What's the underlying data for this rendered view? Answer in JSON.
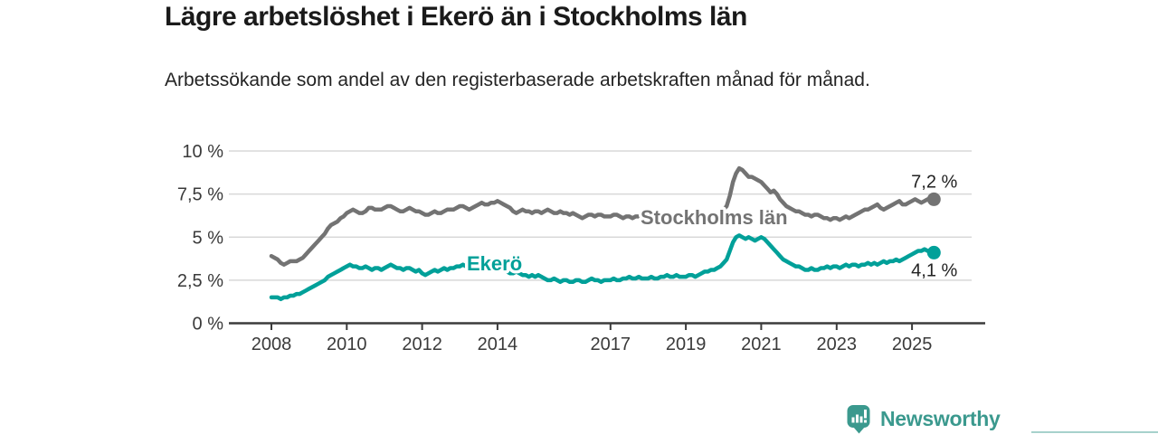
{
  "header": {
    "title": "Lägre arbetslöshet i Ekerö än i Stockholms län",
    "subtitle": "Arbetssökande som andel av den registerbaserade arbetskraften månad för månad."
  },
  "footer": {
    "brand": "Newsworthy",
    "logo_icon": "bar-chart-speech-bubble-icon",
    "brand_color": "#3b998e"
  },
  "chart_data": {
    "type": "line",
    "title": "Lägre arbetslöshet i Ekerö än i Stockholms län",
    "subtitle": "Arbetssökande som andel av den registerbaserade arbetskraften månad för månad.",
    "frequency": "monthly",
    "x_start": "2008-01",
    "x_end": "2025-08",
    "x_tick_labels": [
      "2008",
      "2010",
      "2012",
      "2014",
      "2017",
      "2019",
      "2021",
      "2023",
      "2025"
    ],
    "y_tick_labels": [
      "10 %",
      "7,5 %",
      "5 %",
      "2,5 %",
      "0 %"
    ],
    "ylim": [
      0,
      10
    ],
    "grid": "horizontal",
    "legend": "inline-labels",
    "axis_color": "#3b3b3b",
    "grid_color": "#d8d8d8",
    "series": [
      {
        "name": "Stockholms län",
        "color": "#737373",
        "end_label": "7,2 %",
        "end_value": 7.2,
        "values": [
          3.9,
          3.8,
          3.7,
          3.5,
          3.4,
          3.5,
          3.6,
          3.6,
          3.6,
          3.7,
          3.8,
          4.0,
          4.2,
          4.4,
          4.6,
          4.8,
          5.0,
          5.2,
          5.5,
          5.7,
          5.8,
          5.9,
          6.1,
          6.2,
          6.4,
          6.5,
          6.6,
          6.5,
          6.4,
          6.4,
          6.5,
          6.7,
          6.7,
          6.6,
          6.6,
          6.6,
          6.7,
          6.8,
          6.8,
          6.7,
          6.6,
          6.5,
          6.5,
          6.6,
          6.7,
          6.6,
          6.5,
          6.5,
          6.4,
          6.3,
          6.3,
          6.4,
          6.5,
          6.4,
          6.4,
          6.5,
          6.6,
          6.6,
          6.6,
          6.7,
          6.8,
          6.8,
          6.7,
          6.6,
          6.7,
          6.8,
          6.9,
          7.0,
          6.9,
          6.9,
          7.0,
          7.0,
          7.1,
          7.0,
          6.9,
          6.8,
          6.7,
          6.5,
          6.4,
          6.5,
          6.6,
          6.5,
          6.5,
          6.4,
          6.5,
          6.5,
          6.4,
          6.5,
          6.6,
          6.5,
          6.4,
          6.4,
          6.5,
          6.4,
          6.4,
          6.3,
          6.4,
          6.3,
          6.2,
          6.1,
          6.2,
          6.3,
          6.3,
          6.2,
          6.3,
          6.3,
          6.2,
          6.2,
          6.2,
          6.3,
          6.3,
          6.2,
          6.1,
          6.2,
          6.2,
          6.1,
          6.2,
          6.2,
          6.1,
          6.1,
          6.1,
          6.2,
          6.1,
          6.0,
          6.0,
          6.1,
          6.1,
          6.0,
          6.0,
          6.1,
          6.0,
          6.0,
          6.0,
          6.1,
          6.1,
          6.0,
          6.1,
          6.2,
          6.3,
          6.2,
          6.2,
          6.3,
          6.3,
          6.4,
          6.6,
          6.8,
          7.4,
          8.2,
          8.7,
          9.0,
          8.9,
          8.7,
          8.5,
          8.5,
          8.4,
          8.3,
          8.2,
          8.0,
          7.8,
          7.6,
          7.7,
          7.5,
          7.2,
          7.0,
          6.8,
          6.7,
          6.6,
          6.5,
          6.5,
          6.4,
          6.3,
          6.3,
          6.2,
          6.3,
          6.3,
          6.2,
          6.1,
          6.1,
          6.0,
          6.1,
          6.1,
          6.0,
          6.1,
          6.2,
          6.1,
          6.2,
          6.3,
          6.4,
          6.5,
          6.6,
          6.6,
          6.7,
          6.8,
          6.9,
          6.7,
          6.6,
          6.7,
          6.8,
          6.9,
          7.0,
          7.1,
          6.9,
          6.9,
          7.0,
          7.1,
          7.2,
          7.1,
          7.0,
          7.1,
          7.2,
          7.1,
          7.2
        ]
      },
      {
        "name": "Ekerö",
        "color": "#00a099",
        "end_label": "4,1 %",
        "end_value": 4.1,
        "values": [
          1.5,
          1.5,
          1.5,
          1.4,
          1.5,
          1.5,
          1.6,
          1.6,
          1.7,
          1.7,
          1.8,
          1.9,
          2.0,
          2.1,
          2.2,
          2.3,
          2.4,
          2.5,
          2.7,
          2.8,
          2.9,
          3.0,
          3.1,
          3.2,
          3.3,
          3.4,
          3.3,
          3.3,
          3.2,
          3.2,
          3.3,
          3.2,
          3.1,
          3.2,
          3.2,
          3.1,
          3.2,
          3.3,
          3.4,
          3.3,
          3.2,
          3.2,
          3.1,
          3.2,
          3.2,
          3.1,
          3.0,
          3.1,
          2.9,
          2.8,
          2.9,
          3.0,
          3.1,
          3.0,
          3.1,
          3.2,
          3.1,
          3.2,
          3.2,
          3.3,
          3.3,
          3.4,
          3.3,
          3.3,
          3.4,
          3.3,
          3.4,
          3.3,
          3.3,
          3.2,
          3.3,
          3.3,
          3.3,
          3.2,
          3.1,
          3.0,
          2.9,
          2.9,
          3.0,
          2.9,
          2.8,
          2.8,
          2.7,
          2.8,
          2.7,
          2.8,
          2.7,
          2.6,
          2.5,
          2.5,
          2.6,
          2.5,
          2.4,
          2.5,
          2.5,
          2.4,
          2.4,
          2.5,
          2.5,
          2.4,
          2.4,
          2.5,
          2.6,
          2.5,
          2.5,
          2.4,
          2.5,
          2.5,
          2.5,
          2.6,
          2.5,
          2.5,
          2.6,
          2.6,
          2.7,
          2.6,
          2.6,
          2.7,
          2.6,
          2.6,
          2.6,
          2.7,
          2.6,
          2.6,
          2.7,
          2.7,
          2.8,
          2.7,
          2.7,
          2.8,
          2.7,
          2.7,
          2.7,
          2.8,
          2.8,
          2.7,
          2.8,
          2.9,
          3.0,
          3.0,
          3.1,
          3.1,
          3.2,
          3.3,
          3.5,
          3.7,
          4.2,
          4.7,
          5.0,
          5.1,
          5.0,
          4.9,
          5.0,
          4.9,
          4.8,
          4.9,
          5.0,
          4.9,
          4.7,
          4.5,
          4.3,
          4.1,
          3.9,
          3.7,
          3.6,
          3.5,
          3.4,
          3.3,
          3.3,
          3.2,
          3.1,
          3.1,
          3.2,
          3.1,
          3.1,
          3.2,
          3.2,
          3.3,
          3.2,
          3.3,
          3.3,
          3.2,
          3.3,
          3.4,
          3.3,
          3.4,
          3.4,
          3.3,
          3.4,
          3.4,
          3.5,
          3.4,
          3.5,
          3.4,
          3.5,
          3.6,
          3.5,
          3.6,
          3.6,
          3.7,
          3.6,
          3.7,
          3.8,
          3.9,
          4.0,
          4.1,
          4.2,
          4.2,
          4.3,
          4.2,
          4.2,
          4.1
        ]
      }
    ]
  }
}
